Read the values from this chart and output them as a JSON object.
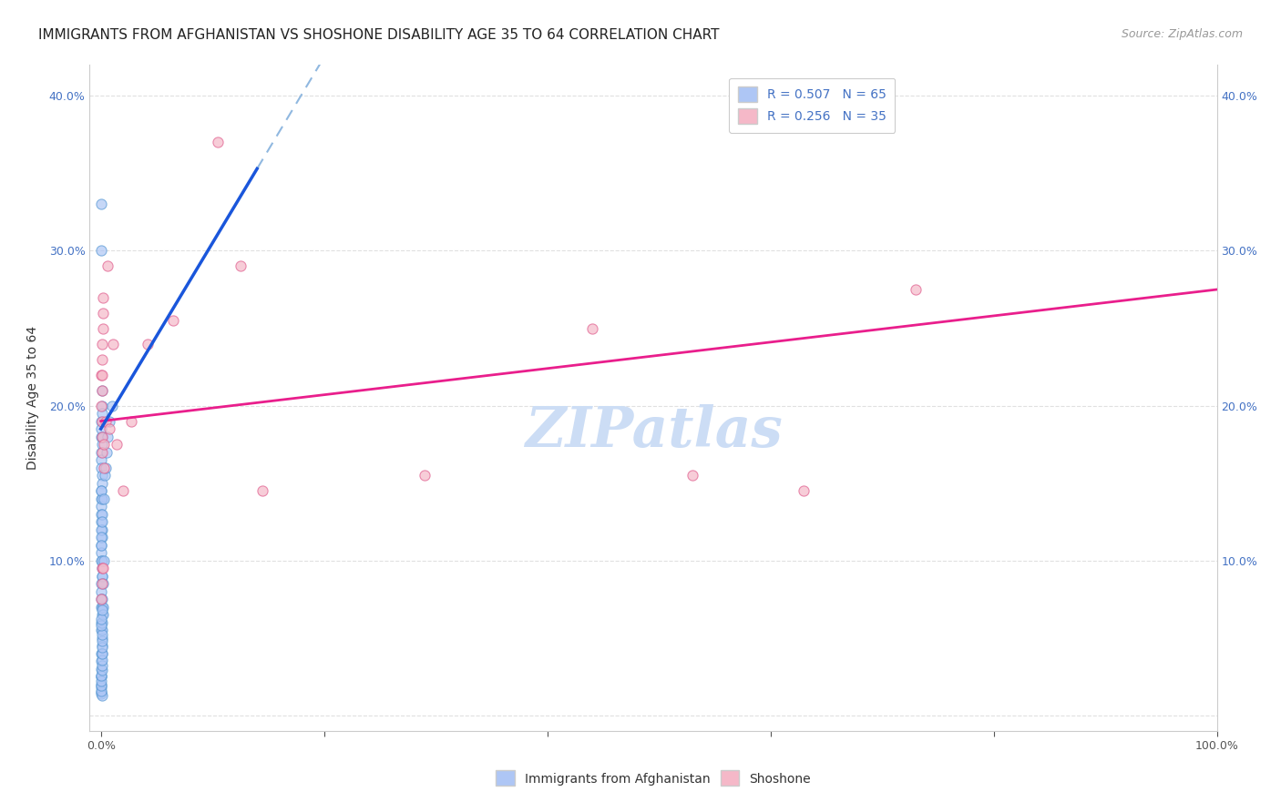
{
  "title": "IMMIGRANTS FROM AFGHANISTAN VS SHOSHONE DISABILITY AGE 35 TO 64 CORRELATION CHART",
  "source": "Source: ZipAtlas.com",
  "ylabel": "Disability Age 35 to 64",
  "xlim": [
    -0.01,
    1.0
  ],
  "ylim": [
    -0.01,
    0.42
  ],
  "blue_scatter_x": [
    0.0005,
    0.0008,
    0.0004,
    0.001,
    0.0007,
    0.0005,
    0.0012,
    0.0006,
    0.0004,
    0.0009,
    0.0004,
    0.0007,
    0.0009,
    0.0004,
    0.0006,
    0.0004,
    0.0008,
    0.0006,
    0.0004,
    0.0006,
    0.0011,
    0.0008,
    0.0006,
    0.0003,
    0.0009,
    0.0006,
    0.0004,
    0.001,
    0.0006,
    0.0003,
    0.0013,
    0.0008,
    0.0006,
    0.0003,
    0.0009,
    0.0014,
    0.0005,
    0.0003,
    0.0011,
    0.0008,
    0.0005,
    0.0003,
    0.0012,
    0.0008,
    0.0005,
    0.002,
    0.001,
    0.0007,
    0.0015,
    0.0005,
    0.0025,
    0.0016,
    0.0012,
    0.0028,
    0.0035,
    0.0048,
    0.0042,
    0.006,
    0.0075,
    0.01,
    0.0003,
    0.0005,
    0.0003,
    0.0008,
    0.0003,
    0.0003,
    0.0003,
    0.0004,
    0.0005,
    0.0006,
    0.0007,
    0.0004,
    0.0003,
    0.0005,
    0.0006,
    0.0007,
    0.0008,
    0.0009,
    0.001,
    0.0011,
    0.0012,
    0.0013,
    0.0005,
    0.0006,
    0.0007
  ],
  "blue_scatter_y": [
    0.19,
    0.2,
    0.18,
    0.21,
    0.195,
    0.185,
    0.175,
    0.17,
    0.165,
    0.18,
    0.16,
    0.155,
    0.15,
    0.145,
    0.14,
    0.135,
    0.14,
    0.145,
    0.13,
    0.125,
    0.12,
    0.115,
    0.11,
    0.105,
    0.13,
    0.12,
    0.115,
    0.125,
    0.11,
    0.1,
    0.095,
    0.09,
    0.085,
    0.08,
    0.1,
    0.09,
    0.075,
    0.07,
    0.065,
    0.07,
    0.06,
    0.055,
    0.05,
    0.045,
    0.04,
    0.07,
    0.055,
    0.06,
    0.065,
    0.035,
    0.1,
    0.085,
    0.075,
    0.14,
    0.155,
    0.17,
    0.16,
    0.18,
    0.19,
    0.2,
    0.33,
    0.3,
    0.025,
    0.04,
    0.03,
    0.025,
    0.02,
    0.018,
    0.015,
    0.014,
    0.013,
    0.016,
    0.019,
    0.022,
    0.026,
    0.029,
    0.032,
    0.036,
    0.04,
    0.044,
    0.048,
    0.052,
    0.058,
    0.062,
    0.068
  ],
  "pink_scatter_x": [
    0.0005,
    0.001,
    0.0014,
    0.0004,
    0.0015,
    0.0008,
    0.0017,
    0.0007,
    0.0012,
    0.002,
    0.0014,
    0.001,
    0.0024,
    0.003,
    0.004,
    0.006,
    0.008,
    0.011,
    0.014,
    0.02,
    0.027,
    0.042,
    0.065,
    0.105,
    0.145,
    0.29,
    0.44,
    0.53,
    0.63,
    0.73,
    0.0008,
    0.0012,
    0.0005,
    0.002,
    0.125
  ],
  "pink_scatter_y": [
    0.22,
    0.24,
    0.23,
    0.2,
    0.25,
    0.21,
    0.26,
    0.18,
    0.22,
    0.27,
    0.17,
    0.19,
    0.16,
    0.175,
    0.19,
    0.29,
    0.185,
    0.24,
    0.175,
    0.145,
    0.19,
    0.24,
    0.255,
    0.37,
    0.145,
    0.155,
    0.25,
    0.155,
    0.145,
    0.275,
    0.095,
    0.085,
    0.075,
    0.095,
    0.29
  ],
  "blue_line_color": "#1a56db",
  "pink_line_color": "#e91e8c",
  "blue_dash_color": "#90b8e0",
  "grid_color": "#e0e0e0",
  "background_color": "#ffffff",
  "watermark": "ZIPatlas",
  "watermark_color": "#ccddf5",
  "title_fontsize": 11,
  "axis_label_fontsize": 10,
  "tick_fontsize": 9,
  "legend_fontsize": 10,
  "source_fontsize": 9,
  "blue_line_x_end": 0.14,
  "blue_line_intercept": 0.185,
  "blue_line_slope": 1.2,
  "pink_line_intercept": 0.19,
  "pink_line_slope": 0.085
}
